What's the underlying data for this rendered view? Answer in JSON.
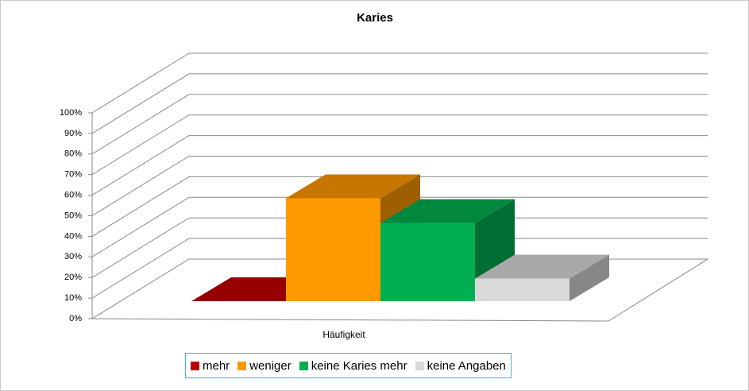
{
  "chart_data": {
    "type": "bar3d",
    "title": "Karies",
    "categories": [
      "Häufigkeit"
    ],
    "series": [
      {
        "name": "mehr",
        "color": "#c00000",
        "values": [
          0
        ]
      },
      {
        "name": "weniger",
        "color": "#ff9900",
        "values": [
          50
        ]
      },
      {
        "name": "keine Karies mehr",
        "color": "#00b050",
        "values": [
          38
        ]
      },
      {
        "name": "keine Angaben",
        "color": "#d9d9d9",
        "values": [
          11
        ]
      }
    ],
    "ylim": [
      0,
      100
    ],
    "yticks": [
      {
        "value": 0,
        "label": "0%"
      },
      {
        "value": 10,
        "label": "10%"
      },
      {
        "value": 20,
        "label": "20%"
      },
      {
        "value": 30,
        "label": "30%"
      },
      {
        "value": 40,
        "label": "40%"
      },
      {
        "value": 50,
        "label": "50%"
      },
      {
        "value": 60,
        "label": "60%"
      },
      {
        "value": 70,
        "label": "70%"
      },
      {
        "value": 80,
        "label": "80%"
      },
      {
        "value": 90,
        "label": "90%"
      },
      {
        "value": 100,
        "label": "100%"
      }
    ],
    "grid": true,
    "legend": "bottom"
  }
}
